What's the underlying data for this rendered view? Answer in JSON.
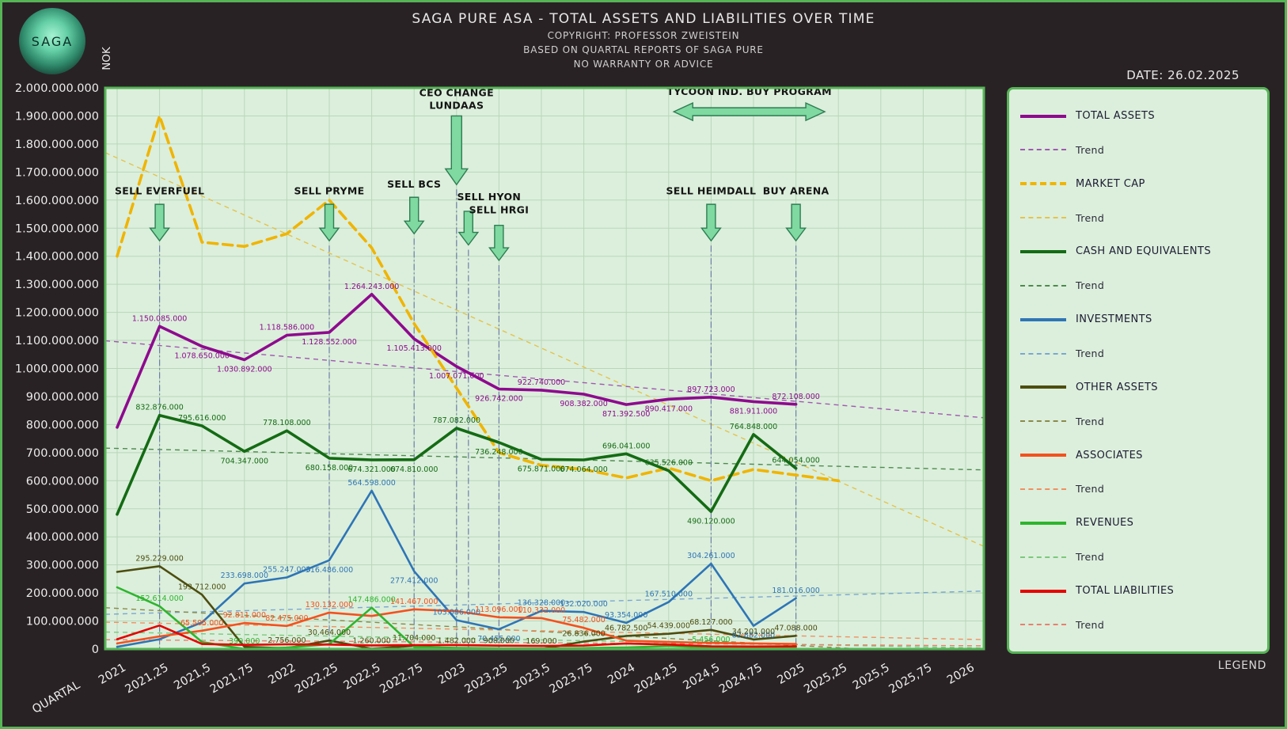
{
  "page": {
    "date_label": "DATE: 26.02.2025",
    "legend_footer": "LEGEND"
  },
  "logo": {
    "text": "SAGA"
  },
  "header": {
    "title": "SAGA PURE ASA - TOTAL ASSETS AND LIABILITIES OVER TIME",
    "subtitle1": "COPYRIGHT: PROFESSOR ZWEISTEIN",
    "subtitle2": "BASED ON QUARTAL REPORTS OF SAGA PURE",
    "subtitle3": "NO WARRANTY OR ADVICE"
  },
  "axes": {
    "y_label": "NOK",
    "x_label": "QUARTAL"
  },
  "chart_data": {
    "type": "line",
    "title": "SAGA PURE ASA - TOTAL ASSETS AND LIABILITIES OVER TIME",
    "ylabel": "NOK",
    "xlabel": "QUARTAL",
    "y_min": 0,
    "y_max": 2000000000,
    "y_step": 100000000,
    "x_min": 2021,
    "x_max": 2026,
    "x_step": 0.25,
    "grid": true,
    "legend_position": "right",
    "series": [
      {
        "name": "TOTAL ASSETS",
        "color": "#8e0a8e",
        "trend_color": "#a05ab0",
        "width": 3.6,
        "dash": null,
        "x_start": 2021,
        "x_step": 0.25,
        "values": [
          790000000,
          1150085000,
          1078650000,
          1030892000,
          1118586000,
          1128552000,
          1264243000,
          1105413000,
          1007071000,
          926742000,
          922740000,
          908382000,
          871392500,
          890417000,
          897723000,
          881911000,
          872108000
        ],
        "label_indices": [
          1,
          2,
          3,
          4,
          5,
          6,
          7,
          8,
          9,
          10,
          11,
          12,
          13,
          14,
          15,
          16
        ],
        "label_below": [
          2,
          3,
          5,
          7,
          8,
          9,
          11,
          12,
          13,
          15
        ],
        "trend": {
          "start": 1095000000,
          "end": 830000000
        }
      },
      {
        "name": "MARKET CAP",
        "color": "#f0b400",
        "trend_color": "#e3c34c",
        "width": 3.6,
        "dash": "12 7",
        "x_start": 2021,
        "x_step": 0.25,
        "values": [
          1400000000,
          1900000000,
          1450000000,
          1435000000,
          1480000000,
          1600000000,
          1430000000,
          1160000000,
          930000000,
          700000000,
          655000000,
          640000000,
          610000000,
          645000000,
          600000000,
          640000000,
          620000000,
          600000000
        ],
        "label_indices": [],
        "label_below": [],
        "trend": {
          "start": 1750000000,
          "end": 395000000
        }
      },
      {
        "name": "CASH AND EQUIVALENTS",
        "color": "#146b14",
        "trend_color": "#4e8a4e",
        "width": 3.6,
        "dash": null,
        "x_start": 2021,
        "x_step": 0.25,
        "values": [
          480000000,
          832876000,
          795616000,
          704347000,
          778108000,
          680158000,
          674321000,
          674810000,
          787082000,
          736248000,
          675871000,
          674064000,
          696041000,
          635526000,
          490120000,
          764848000,
          644054000
        ],
        "label_indices": [
          1,
          2,
          3,
          4,
          5,
          6,
          7,
          8,
          9,
          10,
          11,
          12,
          13,
          14,
          15,
          16
        ],
        "label_below": [
          3,
          5,
          6,
          7,
          9,
          10,
          11,
          14
        ],
        "trend": {
          "start": 715000000,
          "end": 640000000
        }
      },
      {
        "name": "INVESTMENTS",
        "color": "#2e75b6",
        "trend_color": "#7ba7cf",
        "width": 2.6,
        "dash": null,
        "x_start": 2021,
        "x_step": 0.25,
        "values": [
          8000000,
          35000000,
          95000000,
          233698000,
          255247000,
          316486000,
          564598000,
          277412000,
          103086000,
          70455000,
          136328000,
          132020000,
          93354000,
          167510000,
          304261000,
          82882000,
          181016000
        ],
        "label_indices": [
          3,
          4,
          5,
          6,
          7,
          8,
          9,
          10,
          11,
          12,
          13,
          14,
          15,
          16
        ],
        "label_below": [
          5,
          7,
          9,
          15
        ],
        "trend": {
          "start": 125000000,
          "end": 205000000
        }
      },
      {
        "name": "OTHER ASSETS",
        "color": "#4d4d0f",
        "trend_color": "#8a8a4a",
        "width": 2.6,
        "dash": null,
        "x_start": 2021,
        "x_step": 0.25,
        "values": [
          275000000,
          295229000,
          193712000,
          8000000,
          2756000,
          30464000,
          1260000,
          11704000,
          1482000,
          908000,
          169000,
          26836000,
          46782500,
          54439000,
          68127000,
          34201000,
          47088000
        ],
        "label_indices": [
          1,
          2,
          4,
          5,
          6,
          7,
          8,
          9,
          10,
          11,
          12,
          13,
          14,
          15,
          16
        ],
        "label_below": [],
        "trend": {
          "start": 145000000,
          "end": -20000000
        }
      },
      {
        "name": "ASSOCIATES",
        "color": "#f4511e",
        "trend_color": "#f09060",
        "width": 2.6,
        "dash": null,
        "x_start": 2021,
        "x_step": 0.25,
        "values": [
          20000000,
          45000000,
          65505000,
          92811000,
          82475000,
          130132000,
          118000000,
          141467000,
          135000000,
          113096000,
          110332000,
          75482000,
          30000000,
          25000000,
          22000000,
          20000000,
          18000000
        ],
        "label_indices": [
          2,
          3,
          4,
          5,
          7,
          9,
          10,
          11
        ],
        "label_below": [],
        "trend": {
          "start": 95000000,
          "end": 35000000
        }
      },
      {
        "name": "REVENUES",
        "color": "#2eb52e",
        "trend_color": "#7cc87c",
        "width": 2.6,
        "dash": null,
        "x_start": 2021,
        "x_step": 0.25,
        "values": [
          220000000,
          152614000,
          25000000,
          399000,
          5000000,
          17600000,
          147486000,
          8000000,
          4000000,
          2500000,
          2000000,
          3500000,
          5738000,
          10723000,
          5456000,
          3000000,
          4000000
        ],
        "label_indices": [
          1,
          3,
          6,
          14
        ],
        "label_below": [],
        "trend": {
          "start": 60000000,
          "end": 5000000
        }
      },
      {
        "name": "TOTAL LIABILITIES",
        "color": "#e60000",
        "trend_color": "#e88070",
        "width": 2.6,
        "dash": null,
        "x_start": 2021,
        "x_step": 0.25,
        "values": [
          35000000,
          84000000,
          18000000,
          15000000,
          17000000,
          16000000,
          13000000,
          14000000,
          14500000,
          12000000,
          11000000,
          12500000,
          20000000,
          16000000,
          10000000,
          9000000,
          10000000
        ],
        "label_indices": [],
        "label_below": [],
        "trend": {
          "start": 33000000,
          "end": 12000000
        }
      }
    ],
    "annotations": [
      {
        "id": "sell-everfuel",
        "label": "SELL EVERFUEL",
        "x": 2021.25,
        "text_y": 1620000000,
        "arrow_top": 1585000000,
        "arrow_tip": 1455000000,
        "big": false
      },
      {
        "id": "sell-pryme",
        "label": "SELL PRYME",
        "x": 2022.25,
        "text_y": 1620000000,
        "arrow_top": 1585000000,
        "arrow_tip": 1455000000,
        "big": false
      },
      {
        "id": "sell-bcs",
        "label": "SELL BCS",
        "x": 2022.75,
        "text_y": 1645000000,
        "arrow_top": 1610000000,
        "arrow_tip": 1480000000,
        "big": false
      },
      {
        "id": "ceo-change",
        "label": "CEO CHANGE",
        "label2": "LUNDAAS",
        "x": 2023,
        "text_y": 1970000000,
        "arrow_top": 1900000000,
        "arrow_tip": 1655000000,
        "big": true
      },
      {
        "id": "sell-hyon",
        "label": "SELL HYON",
        "x": 2023.07,
        "text_y": 1600000000,
        "arrow_top": 1560000000,
        "arrow_tip": 1440000000,
        "big": false,
        "text_dx": 26
      },
      {
        "id": "sell-hrgi",
        "label": "SELL HRGI",
        "x": 2023.25,
        "text_y": 1553000000,
        "arrow_top": 1510000000,
        "arrow_tip": 1385000000,
        "big": false
      },
      {
        "id": "sell-heimdall",
        "label": "SELL HEIMDALL",
        "x": 2024.5,
        "text_y": 1620000000,
        "arrow_top": 1585000000,
        "arrow_tip": 1455000000,
        "big": false
      },
      {
        "id": "buy-arena",
        "label": "BUY ARENA",
        "x": 2025,
        "text_y": 1620000000,
        "arrow_top": 1585000000,
        "arrow_tip": 1455000000,
        "big": false
      }
    ],
    "program_annotation": {
      "label": "TYCOON IND. BUY PROGRAM",
      "x_from": 2024.28,
      "x_to": 2025.17,
      "y": 1915000000,
      "text_y": 1975000000
    }
  },
  "legend": {
    "items": [
      {
        "label": "TOTAL ASSETS",
        "color": "#8e0a8e",
        "style": "solid"
      },
      {
        "label": "Trend",
        "color": "#a05ab0",
        "style": "trend"
      },
      {
        "label": "MARKET CAP",
        "color": "#f0b400",
        "style": "dashed"
      },
      {
        "label": "Trend",
        "color": "#e3c34c",
        "style": "trend"
      },
      {
        "label": "CASH AND EQUIVALENTS",
        "color": "#146b14",
        "style": "solid"
      },
      {
        "label": "Trend",
        "color": "#4e8a4e",
        "style": "trend"
      },
      {
        "label": "INVESTMENTS",
        "color": "#2e75b6",
        "style": "solid"
      },
      {
        "label": "Trend",
        "color": "#7ba7cf",
        "style": "trend"
      },
      {
        "label": "OTHER ASSETS",
        "color": "#4d4d0f",
        "style": "solid"
      },
      {
        "label": "Trend",
        "color": "#8a8a4a",
        "style": "trend"
      },
      {
        "label": "ASSOCIATES",
        "color": "#f4511e",
        "style": "solid"
      },
      {
        "label": "Trend",
        "color": "#f09060",
        "style": "trend"
      },
      {
        "label": "REVENUES",
        "color": "#2eb52e",
        "style": "solid"
      },
      {
        "label": "Trend",
        "color": "#7cc87c",
        "style": "trend"
      },
      {
        "label": "TOTAL LIABILITIES",
        "color": "#e60000",
        "style": "solid"
      },
      {
        "label": "Trend",
        "color": "#e88070",
        "style": "trend"
      }
    ]
  }
}
